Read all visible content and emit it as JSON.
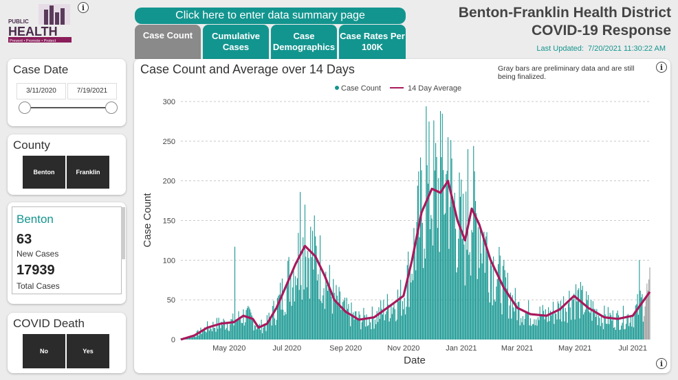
{
  "header": {
    "logo_line1": "PUBLIC",
    "logo_line2": "HEALTH",
    "logo_line3": "Prevent • Promote • Protect",
    "summary_button": "Click here to enter data summary page",
    "title_line1": "Benton-Franklin Health District",
    "title_line2": "COVID-19 Response",
    "last_updated_label": "Last Updated:",
    "last_updated_value": "7/20/2021 11:30:22 AM"
  },
  "tabs": [
    {
      "label": "Case Count",
      "active": true
    },
    {
      "label": "Cumulative Cases",
      "active": false
    },
    {
      "label": "Case Demographics",
      "active": false
    },
    {
      "label": "Case Rates Per 100K",
      "active": false
    }
  ],
  "filters": {
    "case_date": {
      "title": "Case Date",
      "start": "3/11/2020",
      "end": "7/19/2021"
    },
    "county": {
      "title": "County",
      "options": [
        "Benton",
        "Franklin"
      ]
    },
    "covid_death": {
      "title": "COVID Death",
      "options": [
        "No",
        "Yes"
      ]
    }
  },
  "stats": {
    "county": "Benton",
    "new_cases": "63",
    "new_cases_label": "New Cases",
    "total_cases": "17939",
    "total_cases_label": "Total Cases"
  },
  "chart_note": "Gray bars are preliminary data and are still being finalized.",
  "colors": {
    "teal": "#13958f",
    "line": "#a8185c",
    "gray_bar": "#9a9a9a"
  },
  "chart_data": {
    "type": "bar",
    "title": "Case Count and Average over 14 Days",
    "xlabel": "Date",
    "ylabel": "Case Count",
    "ylim": [
      0,
      300
    ],
    "yticks": [
      0,
      50,
      100,
      150,
      200,
      250,
      300
    ],
    "xticks": [
      "May 2020",
      "Jul 2020",
      "Sep 2020",
      "Nov 2020",
      "Jan 2021",
      "Mar 2021",
      "May 2021",
      "Jul 2021"
    ],
    "legend": [
      "Case Count",
      "14 Day Average"
    ],
    "legend_position": "top-center",
    "grid": true,
    "x_start": "3/11/2020",
    "x_end": "7/19/2021",
    "series": [
      {
        "name": "14 Day Average",
        "type": "line",
        "points": [
          [
            "3/11/2020",
            0
          ],
          [
            "3/25/2020",
            5
          ],
          [
            "4/8/2020",
            15
          ],
          [
            "4/22/2020",
            20
          ],
          [
            "5/6/2020",
            22
          ],
          [
            "5/16/2020",
            30
          ],
          [
            "5/26/2020",
            26
          ],
          [
            "6/1/2020",
            15
          ],
          [
            "6/10/2020",
            20
          ],
          [
            "6/20/2020",
            40
          ],
          [
            "7/1/2020",
            70
          ],
          [
            "7/10/2020",
            95
          ],
          [
            "7/20/2020",
            118
          ],
          [
            "7/31/2020",
            105
          ],
          [
            "8/10/2020",
            80
          ],
          [
            "8/20/2020",
            50
          ],
          [
            "9/1/2020",
            35
          ],
          [
            "9/15/2020",
            25
          ],
          [
            "10/1/2020",
            28
          ],
          [
            "10/15/2020",
            40
          ],
          [
            "11/1/2020",
            55
          ],
          [
            "11/10/2020",
            100
          ],
          [
            "11/20/2020",
            160
          ],
          [
            "12/1/2020",
            190
          ],
          [
            "12/10/2020",
            185
          ],
          [
            "12/18/2020",
            200
          ],
          [
            "12/28/2020",
            150
          ],
          [
            "1/5/2021",
            125
          ],
          [
            "1/12/2021",
            165
          ],
          [
            "1/20/2021",
            145
          ],
          [
            "2/1/2021",
            100
          ],
          [
            "2/15/2021",
            65
          ],
          [
            "3/1/2021",
            40
          ],
          [
            "3/15/2021",
            32
          ],
          [
            "4/1/2021",
            30
          ],
          [
            "4/15/2021",
            38
          ],
          [
            "4/30/2021",
            55
          ],
          [
            "5/15/2021",
            40
          ],
          [
            "6/1/2021",
            28
          ],
          [
            "6/15/2021",
            26
          ],
          [
            "7/1/2021",
            30
          ],
          [
            "7/10/2021",
            45
          ],
          [
            "7/19/2021",
            60
          ]
        ]
      },
      {
        "name": "Case Count",
        "type": "bar",
        "note": "daily bars rendered around the 14 day average with visible peaks",
        "peaks": [
          [
            "5/7/2020",
            117
          ],
          [
            "7/15/2020",
            186
          ],
          [
            "7/20/2020",
            170
          ],
          [
            "11/25/2020",
            294
          ],
          [
            "12/10/2020",
            288
          ],
          [
            "12/18/2020",
            255
          ],
          [
            "1/8/2021",
            240
          ],
          [
            "7/8/2021",
            100
          ]
        ]
      }
    ]
  }
}
